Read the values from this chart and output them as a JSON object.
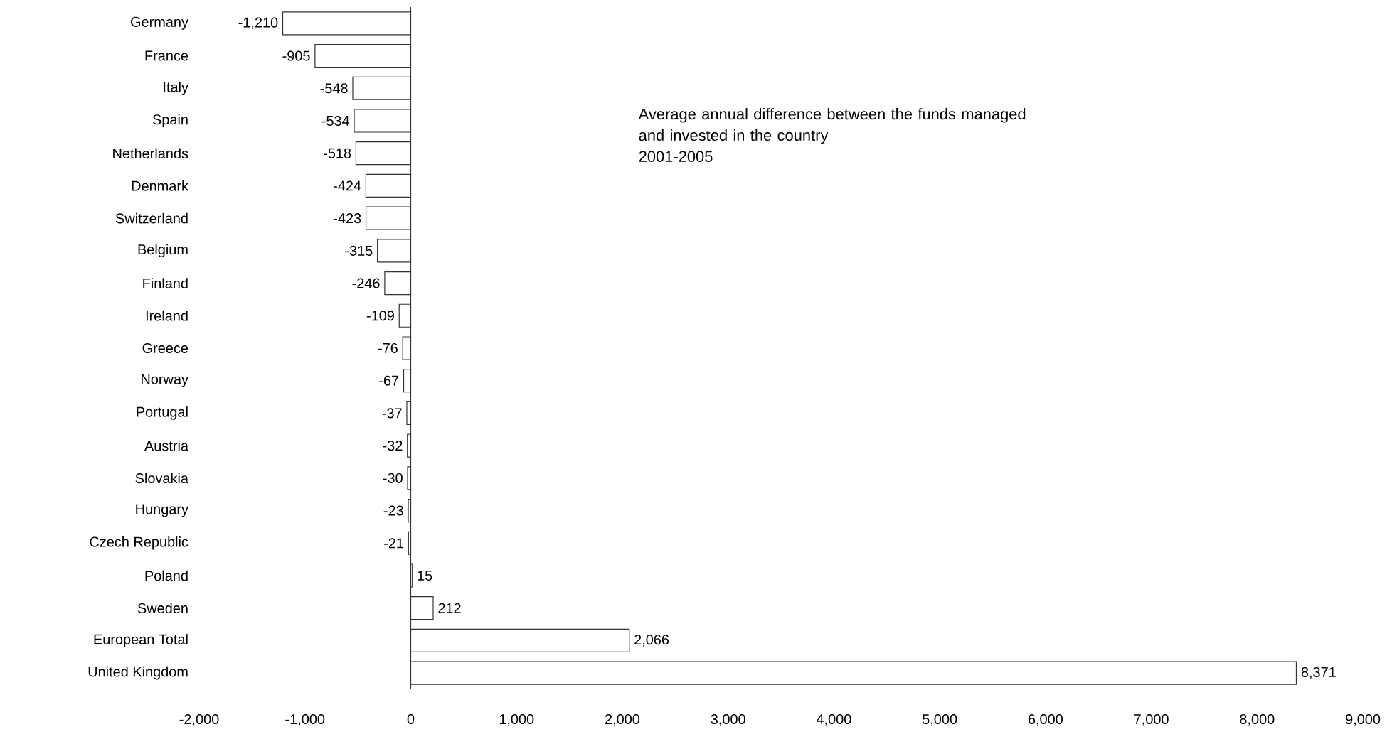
{
  "chart_data": {
    "type": "bar",
    "orientation": "horizontal",
    "title": "Average annual difference between the funds managed and invested in the country",
    "subtitle": "2001-2005",
    "categories": [
      "Germany",
      "France",
      "Italy",
      "Spain",
      "Netherlands",
      "Denmark",
      "Switzerland",
      "Belgium",
      "Finland",
      "Ireland",
      "Greece",
      "Norway",
      "Portugal",
      "Austria",
      "Slovakia",
      "Hungary",
      "Czech Republic",
      "Poland",
      "Sweden",
      "European Total",
      "United Kingdom"
    ],
    "values": [
      -1210,
      -905,
      -548,
      -534,
      -518,
      -424,
      -423,
      -315,
      -246,
      -109,
      -76,
      -67,
      -37,
      -32,
      -30,
      -23,
      -21,
      15,
      212,
      2066,
      8371
    ],
    "value_labels": [
      "-1,210",
      "-905",
      "-548",
      "-534",
      "-518",
      "-424",
      "-423",
      "-315",
      "-246",
      "-109",
      "-76",
      "-67",
      "-37",
      "-32",
      "-30",
      "-23",
      "-21",
      "15",
      "212",
      "2,066",
      "8,371"
    ],
    "color": "#ffffff",
    "xlim": [
      -2000,
      9000
    ],
    "xticks": [
      {
        "value": -2000,
        "label": "-2,000"
      },
      {
        "value": -1000,
        "label": "-1,000"
      },
      0,
      {
        "value": 1000,
        "label": "1,000"
      },
      {
        "value": 2000,
        "label": "2,000"
      },
      {
        "value": 3000,
        "label": "3,000"
      },
      {
        "value": 4000,
        "label": "4,000"
      },
      {
        "value": 5000,
        "label": "5,000"
      },
      {
        "value": 6000,
        "label": "6,000"
      },
      {
        "value": 7000,
        "label": "7,000"
      },
      {
        "value": 8000,
        "label": "8,000"
      },
      {
        "value": 9000,
        "label": "9,000"
      }
    ]
  }
}
